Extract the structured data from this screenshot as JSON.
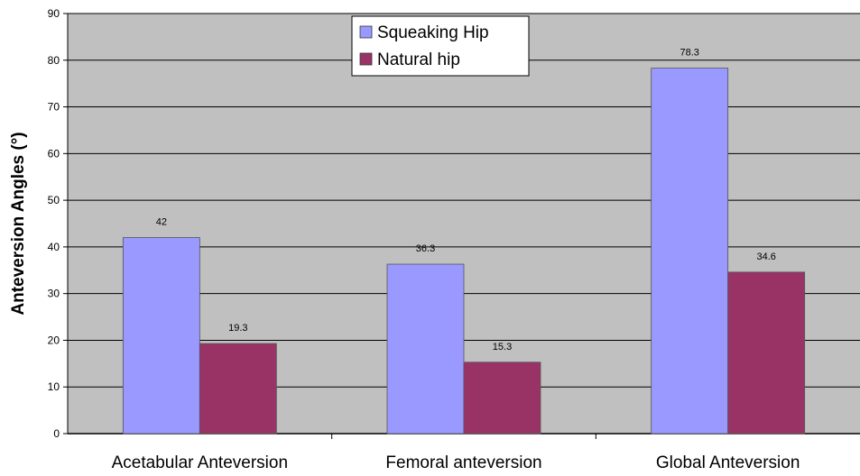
{
  "chart_data": {
    "type": "bar",
    "title": "",
    "xlabel": "",
    "ylabel": "Anteversion Angles (°)",
    "ylim": [
      0,
      90
    ],
    "yticks": [
      "0",
      "10",
      "20",
      "30",
      "40",
      "50",
      "60",
      "70",
      "80",
      "90"
    ],
    "grid": true,
    "legend_position": "top-center",
    "categories": [
      "Acetabular Anteversion",
      "Femoral  anteversion",
      "Global Anteversion"
    ],
    "series": [
      {
        "name": "Squeaking Hip",
        "color": "#9999ff",
        "values": [
          42,
          36.3,
          78.3
        ],
        "labels": [
          "42",
          "36.3",
          "78.3"
        ]
      },
      {
        "name": "Natural hip",
        "color": "#993366",
        "values": [
          19.3,
          15.3,
          34.6
        ],
        "labels": [
          "19.3",
          "15.3",
          "34.6"
        ]
      }
    ],
    "plot_background": "#c0c0c0"
  }
}
